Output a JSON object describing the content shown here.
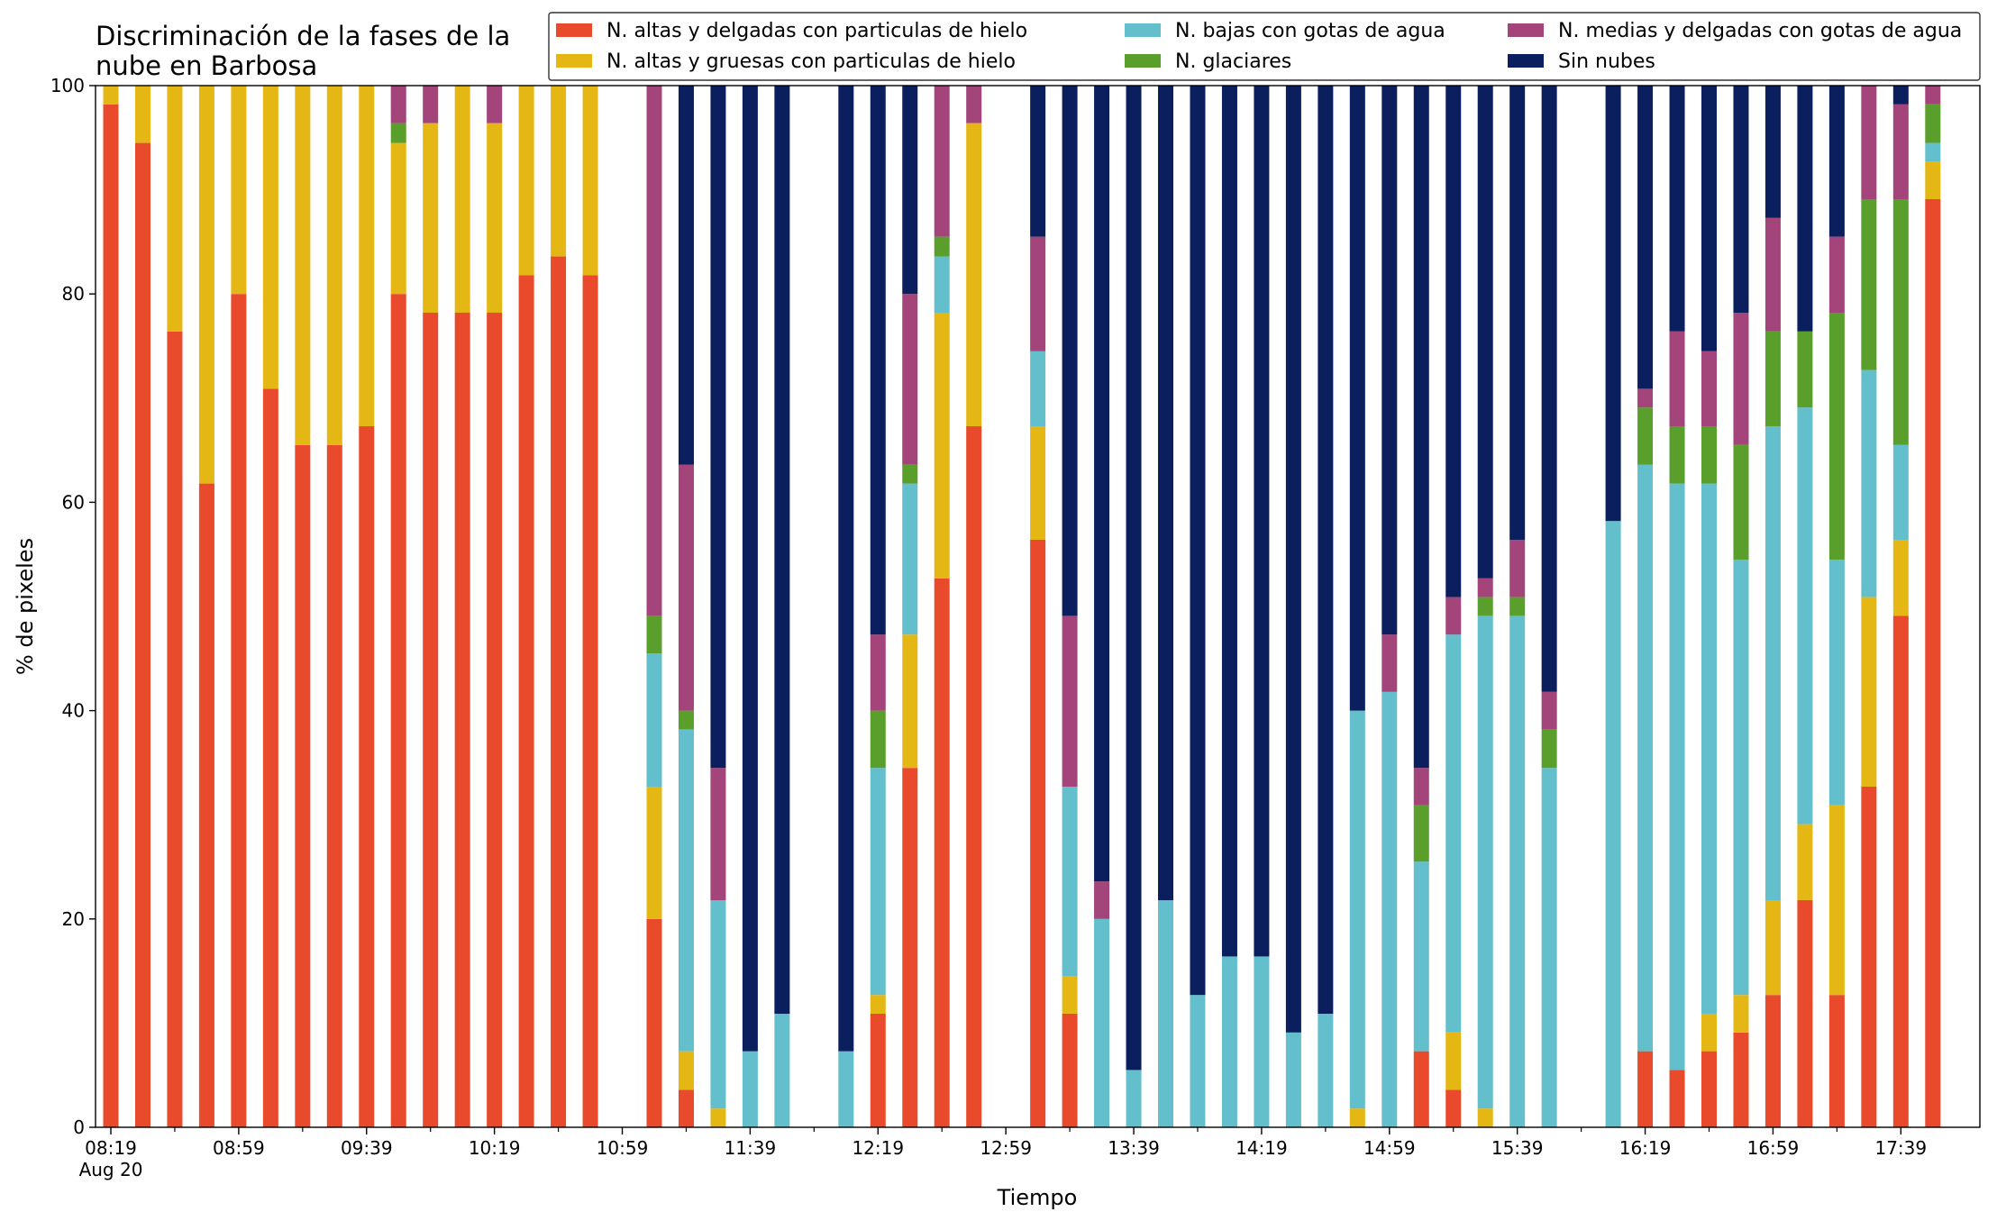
{
  "chart_data": {
    "type": "stacked_bar",
    "title": [
      "Discriminación de la fases de la",
      "nube en Barbosa"
    ],
    "x_label": "Tiempo",
    "y_label": "% de pixeles",
    "date_label": "Aug 20",
    "categories": [
      "08:19",
      null,
      null,
      null,
      "08:59",
      null,
      null,
      null,
      "09:39",
      null,
      null,
      null,
      "10:19",
      null,
      null,
      null,
      "10:59",
      null,
      null,
      null,
      "11:39",
      null,
      null,
      null,
      "12:19",
      null,
      null,
      null,
      "12:59",
      null,
      null,
      null,
      "13:39",
      null,
      null,
      null,
      "14:19",
      null,
      null,
      null,
      "14:59",
      null,
      null,
      null,
      "15:39",
      null,
      null,
      null,
      "16:19",
      null,
      null,
      null,
      "16:59",
      null,
      null,
      null,
      "17:39",
      null
    ],
    "ylim": [
      0,
      100
    ],
    "yticks": [
      0,
      20,
      40,
      60,
      80,
      100
    ],
    "legend": "upper-right",
    "series": [
      {
        "name": "N. altas y delgadas con particulas de hielo",
        "color": "#e84a2b",
        "values": [
          98.2,
          94.5,
          76.4,
          61.8,
          80,
          70.9,
          65.5,
          65.5,
          67.3,
          80,
          78.2,
          78.2,
          78.2,
          81.8,
          83.6,
          81.8,
          null,
          20,
          3.6,
          0,
          0,
          0,
          null,
          0,
          10.9,
          34.5,
          52.7,
          67.3,
          null,
          56.4,
          10.9,
          0,
          0,
          0,
          0,
          0,
          0,
          0,
          0,
          0,
          0,
          7.3,
          3.6,
          0,
          0,
          0,
          null,
          0,
          7.3,
          5.5,
          7.3,
          9.1,
          12.7,
          21.8,
          12.7,
          32.7,
          49.1,
          89.1
        ]
      },
      {
        "name": "N. altas y gruesas con particulas de hielo",
        "color": "#e5b715",
        "values": [
          1.8,
          5.5,
          23.6,
          38.2,
          20,
          29.1,
          34.5,
          34.5,
          32.7,
          14.5,
          18.2,
          21.8,
          18.2,
          18.2,
          16.4,
          18.2,
          null,
          12.7,
          3.7,
          1.8,
          0,
          0,
          null,
          0,
          1.8,
          12.8,
          25.5,
          29.1,
          null,
          10.9,
          3.6,
          0,
          0,
          0,
          0,
          0,
          0,
          0,
          0,
          1.8,
          0,
          0,
          5.5,
          1.8,
          0,
          0,
          null,
          0,
          0,
          0,
          3.6,
          3.6,
          9.1,
          7.3,
          18.2,
          18.2,
          7.3,
          3.6
        ]
      },
      {
        "name": "N. bajas con gotas de agua",
        "color": "#64bfcc",
        "values": [
          0,
          0,
          0,
          0,
          0,
          0,
          0,
          0,
          0,
          0,
          0,
          0,
          0,
          0,
          0,
          0,
          null,
          12.8,
          30.9,
          20,
          7.3,
          10.9,
          null,
          7.3,
          21.8,
          14.5,
          5.4,
          0,
          null,
          7.2,
          18.2,
          20,
          5.5,
          21.8,
          12.7,
          16.4,
          16.4,
          9.1,
          10.9,
          38.2,
          41.8,
          18.2,
          38.2,
          47.3,
          49.1,
          34.5,
          null,
          58.2,
          56.3,
          56.3,
          50.9,
          41.8,
          45.5,
          40,
          23.6,
          21.8,
          9.1,
          1.8
        ]
      },
      {
        "name": "N. glaciares",
        "color": "#5a9e2c",
        "values": [
          0,
          0,
          0,
          0,
          0,
          0,
          0,
          0,
          0,
          1.9,
          0,
          0,
          0,
          0,
          0,
          0,
          null,
          3.6,
          1.8,
          0,
          0,
          0,
          null,
          0,
          5.5,
          1.8,
          1.9,
          0,
          null,
          0,
          0,
          0,
          0,
          0,
          0,
          0,
          0,
          0,
          0,
          0,
          0,
          5.4,
          0,
          1.8,
          1.8,
          3.7,
          null,
          0,
          5.5,
          5.5,
          5.5,
          11,
          9.1,
          7.3,
          23.7,
          16.4,
          23.6,
          3.7
        ]
      },
      {
        "name": "N. medias y delgadas con gotas de agua",
        "color": "#a3447a",
        "values": [
          0,
          0,
          0,
          0,
          0,
          0,
          0,
          0,
          0,
          3.6,
          3.6,
          0,
          3.6,
          0,
          0,
          0,
          null,
          50.9,
          23.6,
          12.7,
          0,
          0,
          null,
          0,
          7.3,
          16.4,
          14.5,
          3.6,
          null,
          11,
          16.4,
          3.6,
          0,
          0,
          0,
          0,
          0,
          0,
          0,
          0,
          5.5,
          3.6,
          3.6,
          1.8,
          5.5,
          3.6,
          null,
          0,
          1.8,
          9.1,
          7.2,
          12.7,
          10.9,
          0,
          7.3,
          10.9,
          9.1,
          1.8
        ]
      },
      {
        "name": "Sin nubes",
        "color": "#0b1f5e",
        "values": [
          0,
          0,
          0,
          0,
          0,
          0,
          0,
          0,
          0,
          0,
          0,
          0,
          0,
          0,
          0,
          0,
          null,
          0,
          36.4,
          65.5,
          92.7,
          89.1,
          null,
          92.7,
          52.7,
          20,
          0,
          0,
          null,
          14.5,
          50.9,
          76.4,
          94.5,
          78.2,
          87.3,
          83.6,
          83.6,
          90.9,
          89.1,
          60,
          52.7,
          65.5,
          49.1,
          47.3,
          43.6,
          58.2,
          null,
          41.8,
          29.1,
          23.6,
          25.5,
          21.8,
          12.7,
          23.6,
          14.5,
          0,
          1.8,
          0
        ]
      }
    ]
  }
}
